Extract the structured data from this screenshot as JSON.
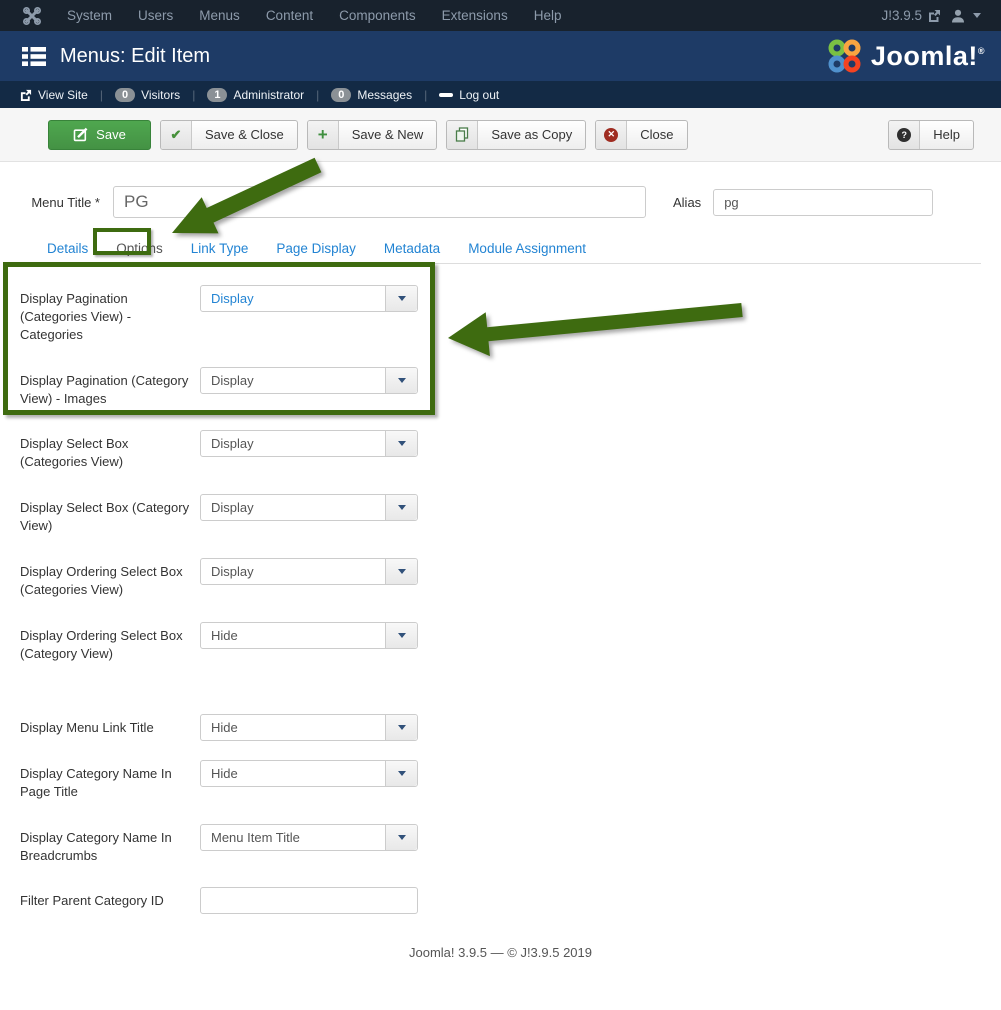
{
  "colors": {
    "annotation_green": "#3e6b10",
    "link_blue": "#2384d3",
    "save_green": "#46a546",
    "header_blue": "#1e3b66",
    "topnav_dark": "#18222d"
  },
  "topnav": {
    "menu_items": [
      "System",
      "Users",
      "Menus",
      "Content",
      "Components",
      "Extensions",
      "Help"
    ],
    "site_link_label": "J!3.9.5"
  },
  "header": {
    "title": "Menus: Edit Item",
    "logo_text": "Joomla!",
    "logo_reg": "®"
  },
  "statusbar": {
    "view_site": "View Site",
    "visitors": {
      "count": "0",
      "label": "Visitors"
    },
    "administrator": {
      "count": "1",
      "label": "Administrator"
    },
    "messages": {
      "count": "0",
      "label": "Messages"
    },
    "logout": "Log out"
  },
  "toolbar": {
    "save": "Save",
    "save_close": "Save & Close",
    "save_new": "Save & New",
    "save_copy": "Save as Copy",
    "close": "Close",
    "help": "Help"
  },
  "fields": {
    "menu_title_label": "Menu Title *",
    "menu_title_value": "PG",
    "alias_label": "Alias",
    "alias_value": "pg"
  },
  "tabs": {
    "items": [
      "Details",
      "Options",
      "Link Type",
      "Page Display",
      "Metadata",
      "Module Assignment"
    ],
    "active": "Options"
  },
  "form_rows": [
    {
      "label": "Display Pagination (Categories View) - Categories",
      "value": "Display",
      "control": "select",
      "changed": true
    },
    {
      "label": "Display Pagination (Category View) - Images",
      "value": "Display",
      "control": "select",
      "changed": false
    },
    {
      "label": "Display Select Box (Categories View)",
      "value": "Display",
      "control": "select",
      "changed": false
    },
    {
      "label": "Display Select Box (Category View)",
      "value": "Display",
      "control": "select",
      "changed": false
    },
    {
      "label": "Display Ordering Select Box (Categories View)",
      "value": "Display",
      "control": "select",
      "changed": false
    },
    {
      "label": "Display Ordering Select Box (Category View)",
      "value": "Hide",
      "control": "select",
      "changed": false
    },
    {
      "label": "Display Menu Link Title",
      "value": "Hide",
      "control": "select",
      "changed": false
    },
    {
      "label": "Display Category Name In Page Title",
      "value": "Hide",
      "control": "select",
      "changed": false
    },
    {
      "label": "Display Category Name In Breadcrumbs",
      "value": "Menu Item Title",
      "control": "select",
      "changed": false
    },
    {
      "label": "Filter Parent Category ID",
      "value": "",
      "control": "input",
      "changed": false
    }
  ],
  "footer": {
    "text": "Joomla! 3.9.5  —  © J!3.9.5 2019"
  }
}
